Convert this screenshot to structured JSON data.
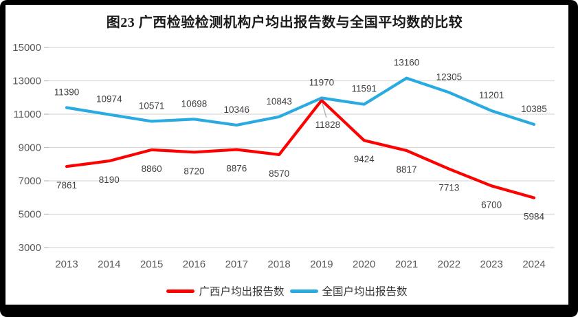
{
  "title": "图23 广西检验检测机构户均出报告数与全国平均数的比较",
  "chart_data": {
    "type": "line",
    "categories": [
      "2013",
      "2014",
      "2015",
      "2016",
      "2017",
      "2018",
      "2019",
      "2020",
      "2021",
      "2022",
      "2023",
      "2024"
    ],
    "series": [
      {
        "name": "广西户均出报告数",
        "color": "#FF0000",
        "values": [
          7861,
          8190,
          8860,
          8720,
          8876,
          8570,
          11828,
          9424,
          8817,
          7713,
          6700,
          5984
        ]
      },
      {
        "name": "全国户均出报告数",
        "color": "#29ABE2",
        "values": [
          11390,
          10974,
          10571,
          10698,
          10346,
          10843,
          11970,
          11591,
          13160,
          12305,
          11201,
          10385
        ]
      }
    ],
    "xlabel": "",
    "ylabel": "",
    "ylim": [
      3000,
      15000
    ],
    "ytick_step": 2000,
    "yticks": [
      3000,
      5000,
      7000,
      9000,
      11000,
      13000,
      15000
    ],
    "grid": true,
    "data_labels": true,
    "legend_position": "bottom"
  },
  "colors": {
    "frame": "#000000",
    "background": "#FFFFFF",
    "gridline": "#D9D9D9",
    "tick": "#BFBFBF",
    "axis_text": "#595959",
    "data_label_text": "#404040",
    "leader_line": "#A6A6A6"
  }
}
